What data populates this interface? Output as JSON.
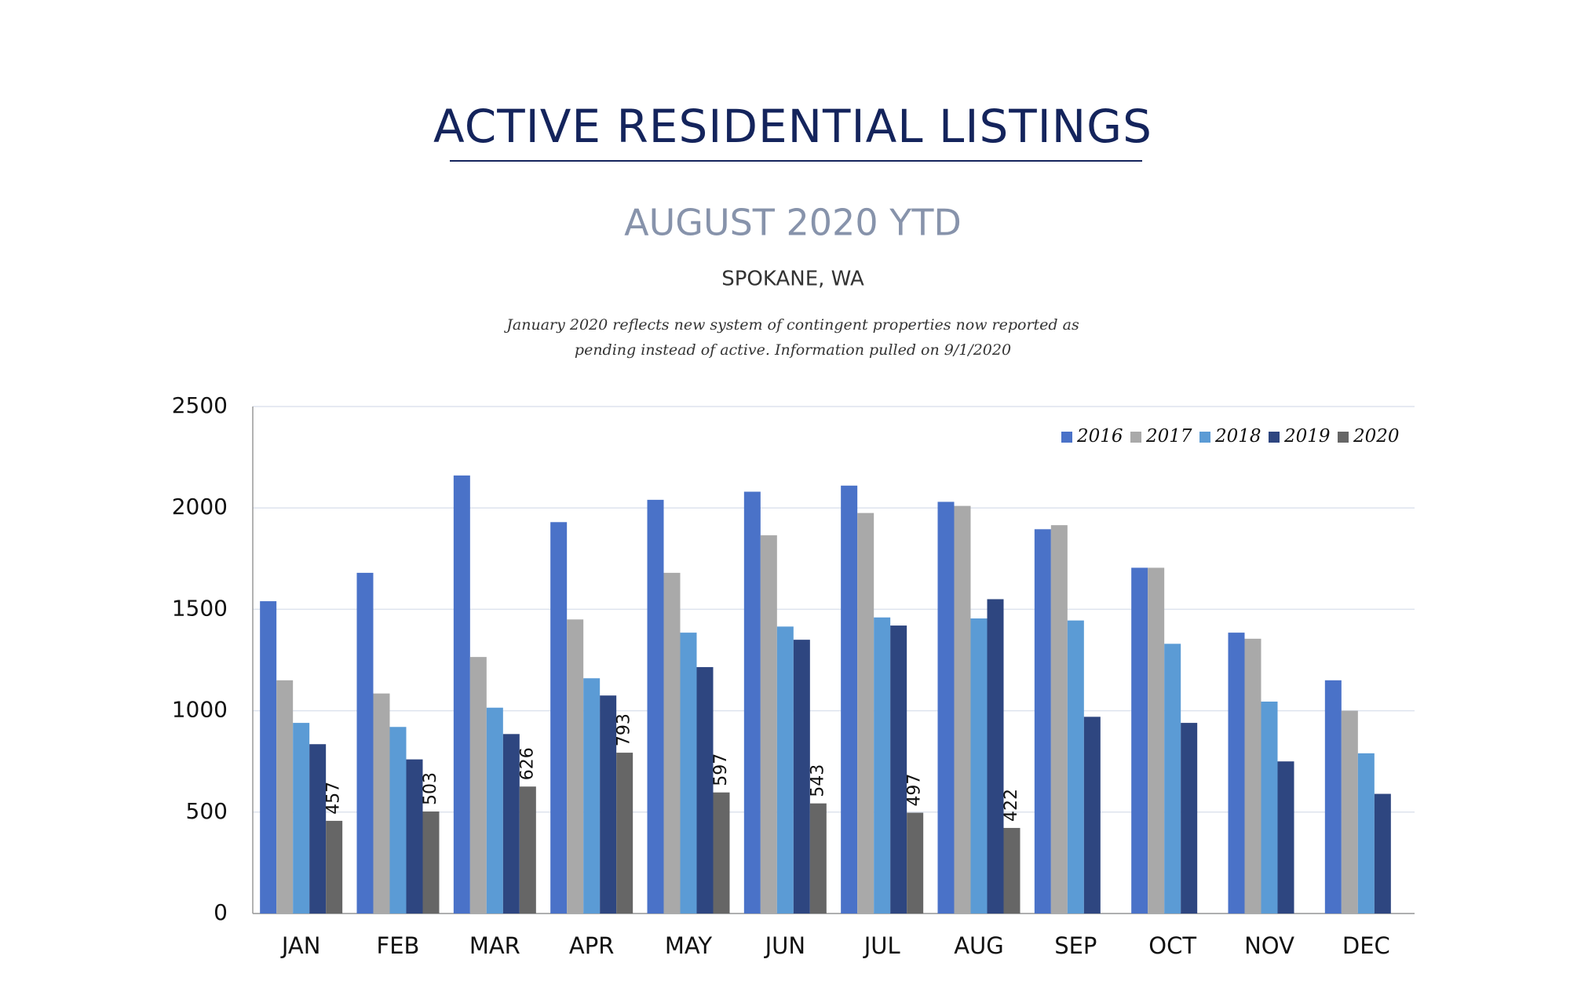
{
  "chart_data": {
    "type": "bar",
    "title": "ACTIVE RESIDENTIAL LISTINGS",
    "subtitle": "AUGUST 2020 YTD",
    "location": "SPOKANE, WA",
    "note": [
      "January 2020 reflects new system of contingent properties now reported as",
      "pending instead of active.  Information pulled on 9/1/2020"
    ],
    "categories": [
      "JAN",
      "FEB",
      "MAR",
      "APR",
      "MAY",
      "JUN",
      "JUL",
      "AUG",
      "SEP",
      "OCT",
      "NOV",
      "DEC"
    ],
    "series": [
      {
        "name": "2016",
        "color": "#4a72c8",
        "values": [
          1540,
          1680,
          2160,
          1930,
          2040,
          2080,
          2110,
          2030,
          1895,
          1705,
          1385,
          1150
        ]
      },
      {
        "name": "2017",
        "color": "#a9a9a9",
        "values": [
          1150,
          1085,
          1265,
          1450,
          1680,
          1865,
          1975,
          2010,
          1915,
          1705,
          1355,
          1000
        ]
      },
      {
        "name": "2018",
        "color": "#5b9bd5",
        "values": [
          940,
          920,
          1015,
          1160,
          1385,
          1415,
          1460,
          1455,
          1445,
          1330,
          1045,
          790
        ]
      },
      {
        "name": "2019",
        "color": "#2e4680",
        "values": [
          835,
          760,
          885,
          1075,
          1215,
          1350,
          1420,
          1550,
          970,
          940,
          750,
          590
        ]
      },
      {
        "name": "2020",
        "color": "#666666",
        "values": [
          457,
          503,
          626,
          793,
          597,
          543,
          497,
          422,
          null,
          null,
          null,
          null
        ],
        "data_labels": true
      }
    ],
    "ylim": [
      0,
      2500
    ],
    "yticks": [
      0,
      500,
      1000,
      1500,
      2000,
      2500
    ],
    "grid": true,
    "legend": "top-right"
  }
}
